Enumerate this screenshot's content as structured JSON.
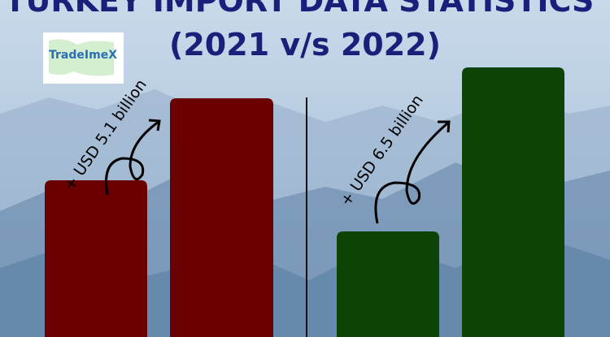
{
  "header": {
    "title": "TURKEY IMPORT DATA STATISTICS",
    "subtitle": "(2021 v/s 2022)"
  },
  "logo": {
    "text": "TradeImeX"
  },
  "annotations": [
    "+ USD 5.1 billion",
    "+ USD 6.5 billion"
  ]
}
